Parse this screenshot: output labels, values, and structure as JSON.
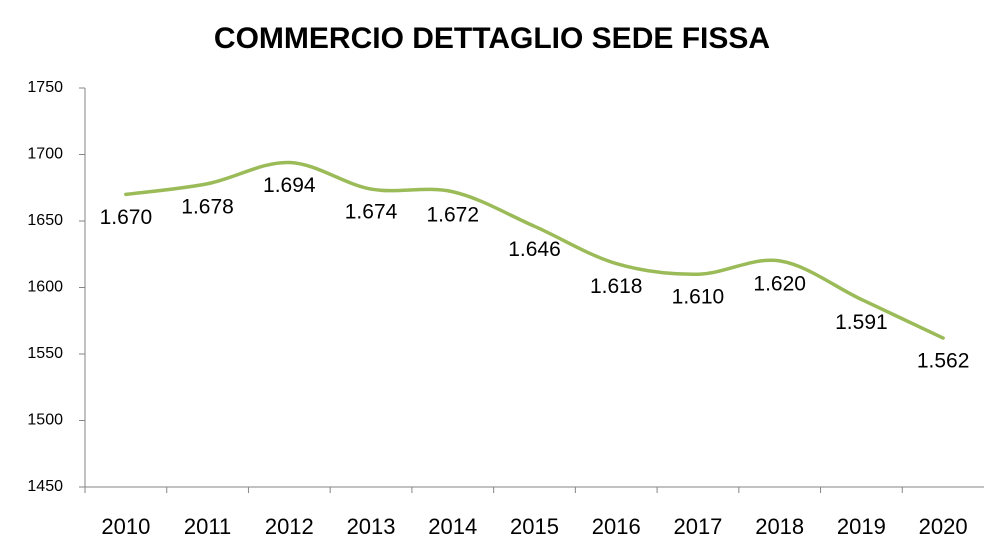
{
  "chart_data": {
    "type": "line",
    "title": "COMMERCIO DETTAGLIO SEDE FISSA",
    "categories": [
      "2010",
      "2011",
      "2012",
      "2013",
      "2014",
      "2015",
      "2016",
      "2017",
      "2018",
      "2019",
      "2020"
    ],
    "series": [
      {
        "name": "Commercio dettaglio sede fissa",
        "color": "#9bbb59",
        "values": [
          1670,
          1678,
          1694,
          1674,
          1672,
          1646,
          1618,
          1610,
          1620,
          1591,
          1562
        ],
        "value_labels": [
          "1.670",
          "1.678",
          "1.694",
          "1.674",
          "1.672",
          "1.646",
          "1.618",
          "1.610",
          "1.620",
          "1.591",
          "1.562"
        ]
      }
    ],
    "ylim": [
      1450,
      1750
    ],
    "yticks": [
      1450,
      1500,
      1550,
      1600,
      1650,
      1700,
      1750
    ]
  }
}
